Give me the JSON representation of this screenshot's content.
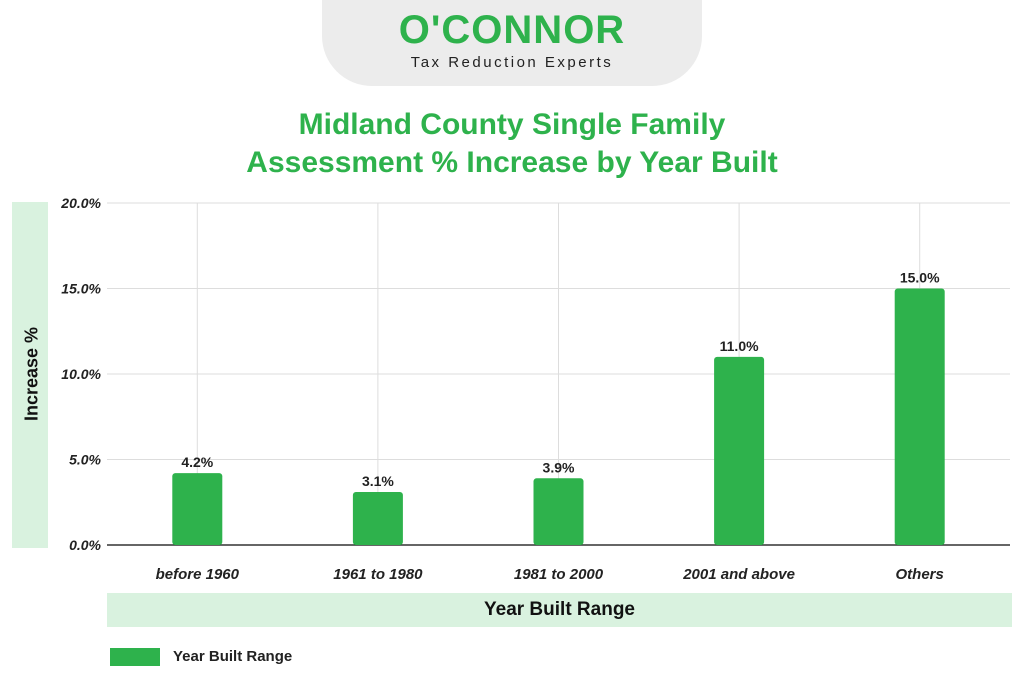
{
  "logo": {
    "name": "O'CONNOR",
    "tagline": "Tax Reduction Experts"
  },
  "colors": {
    "accent": "#2eb24c",
    "band": "#d9f2df",
    "grid": "#dddddd",
    "text": "#222222"
  },
  "chart_data": {
    "type": "bar",
    "title_lines": [
      "Midland County Single Family",
      "Assessment % Increase by Year Built"
    ],
    "xlabel": "Year Built Range",
    "ylabel": "Increase %",
    "categories": [
      "before 1960",
      "1961 to 1980",
      "1981 to 2000",
      "2001 and above",
      "Others"
    ],
    "series": [
      {
        "name": "Year Built Range",
        "values": [
          4.2,
          3.1,
          3.9,
          11.0,
          15.0
        ],
        "value_labels": [
          "4.2%",
          "3.1%",
          "3.9%",
          "11.0%",
          "15.0%"
        ]
      }
    ],
    "ylim": [
      0,
      20
    ],
    "yticks": [
      0,
      5,
      10,
      15,
      20
    ],
    "ytick_labels": [
      "0.0%",
      "5.0%",
      "10.0%",
      "15.0%",
      "20.0%"
    ],
    "grid": true,
    "legend_position": "bottom-left"
  }
}
